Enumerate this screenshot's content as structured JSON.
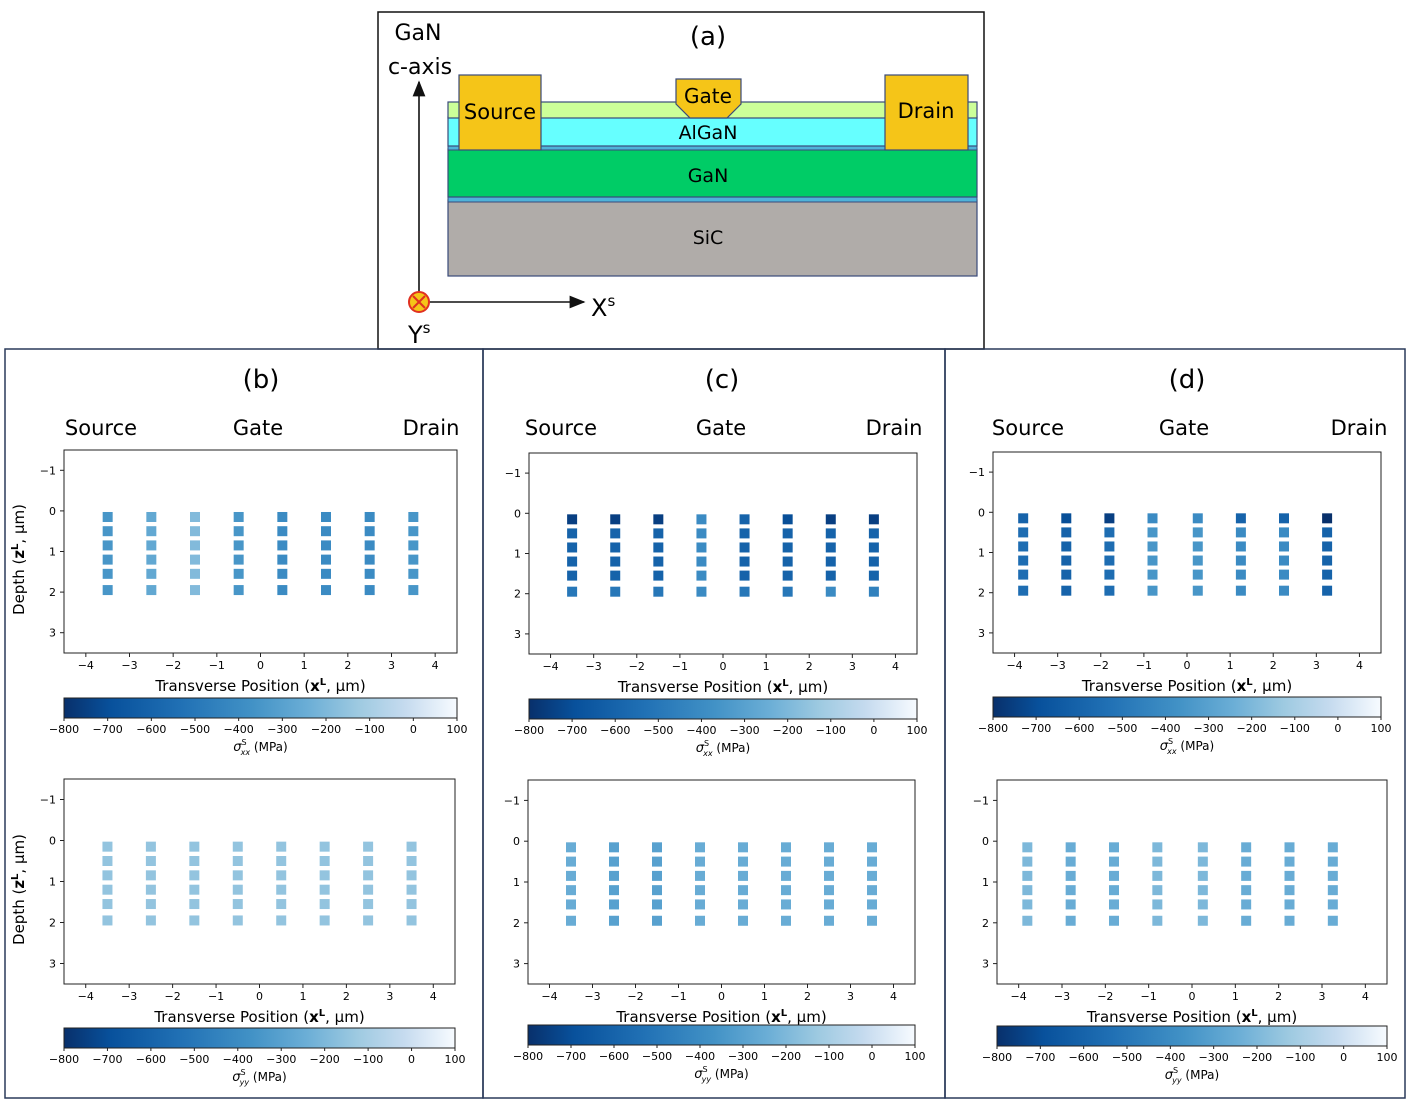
{
  "panel_a": {
    "label": "(a)",
    "gan_label": "GaN",
    "caxis_label": "c-axis",
    "x_axis_main": "X",
    "x_axis_sup": "s",
    "y_axis_main": "Y",
    "y_axis_sup": "s",
    "layers": {
      "source": "Source",
      "gate": "Gate",
      "drain": "Drain",
      "algan": "AlGaN",
      "gan": "GaN",
      "sic": "SiC"
    },
    "colors": {
      "contact": "#f5c518",
      "cap": "#ccff99",
      "algan": "#66ffff",
      "gan": "#00cc66",
      "sic": "#b0aca9",
      "thin": "#4fb3d9"
    }
  },
  "panels": [
    {
      "id": "b",
      "label": "(b)"
    },
    {
      "id": "c",
      "label": "(c)"
    },
    {
      "id": "d",
      "label": "(d)"
    }
  ],
  "headers": {
    "source": "Source",
    "gate": "Gate",
    "drain": "Drain"
  },
  "axes": {
    "xlabel_main": "Transverse Position",
    "xlabel_bold": "x",
    "xlabel_sup": "L",
    "xlabel_unit": ", μm)",
    "ylabel_main": "Depth (",
    "ylabel_bold": "z",
    "ylabel_sup": "L",
    "ylabel_unit": ", μm)",
    "xticks": [
      "−4",
      "−3",
      "−2",
      "−1",
      "0",
      "1",
      "2",
      "3",
      "4"
    ],
    "yticks": [
      "−1",
      "0",
      "1",
      "2",
      "3"
    ],
    "xlim": [
      -4.5,
      4.5
    ],
    "ylim": [
      3.5,
      -1.5
    ]
  },
  "colorbar": {
    "ticks": [
      "−800",
      "−700",
      "−600",
      "−500",
      "−400",
      "−300",
      "−200",
      "−100",
      "0",
      "100"
    ],
    "range": [
      -800,
      100
    ],
    "label_xx": "(MPa)",
    "label_yy": "(MPa)",
    "sigma": "σ",
    "sup": "S",
    "sub_xx": "xx",
    "sub_yy": "yy"
  },
  "chart_data": [
    {
      "type": "heatmap",
      "panel": "b",
      "title": "(b)",
      "stress": "sigma_xx",
      "x": [
        -3.5,
        -2.5,
        -1.5,
        -0.5,
        0.5,
        1.5,
        2.5,
        3.5
      ],
      "depth": [
        0.15,
        0.5,
        0.85,
        1.2,
        1.55,
        1.95
      ],
      "column_values": [
        -350,
        -270,
        -190,
        -350,
        -400,
        -400,
        -400,
        -350
      ]
    },
    {
      "type": "heatmap",
      "panel": "b",
      "title": "(b)",
      "stress": "sigma_yy",
      "x": [
        -3.5,
        -2.5,
        -1.5,
        -0.5,
        0.5,
        1.5,
        2.5,
        3.5
      ],
      "depth": [
        0.15,
        0.5,
        0.85,
        1.2,
        1.55,
        1.95
      ],
      "column_values": [
        -150,
        -150,
        -150,
        -150,
        -150,
        -150,
        -150,
        -150
      ]
    },
    {
      "type": "heatmap",
      "panel": "c",
      "title": "(c)",
      "stress": "sigma_xx",
      "x": [
        -3.5,
        -2.5,
        -1.5,
        -0.5,
        0.5,
        1.5,
        2.5,
        3.5
      ],
      "depth": [
        0.15,
        0.5,
        0.85,
        1.2,
        1.55,
        1.95
      ],
      "column_values": [
        -600,
        -600,
        -600,
        -400,
        -600,
        -600,
        -600,
        -600
      ],
      "top_row_values": [
        -750,
        -750,
        -750,
        -400,
        -600,
        -700,
        -750,
        -750
      ],
      "bottom_row_values": [
        -500,
        -500,
        -500,
        -400,
        -500,
        -500,
        -400,
        -450
      ]
    },
    {
      "type": "heatmap",
      "panel": "c",
      "title": "(c)",
      "stress": "sigma_yy",
      "x": [
        -3.5,
        -2.5,
        -1.5,
        -0.5,
        0.5,
        1.5,
        2.5,
        3.5
      ],
      "depth": [
        0.15,
        0.5,
        0.85,
        1.2,
        1.55,
        1.95
      ],
      "column_values": [
        -250,
        -300,
        -300,
        -250,
        -250,
        -250,
        -250,
        -250
      ]
    },
    {
      "type": "heatmap",
      "panel": "d",
      "title": "(d)",
      "stress": "sigma_xx",
      "x": [
        -3.8,
        -2.8,
        -1.8,
        -0.8,
        0.25,
        1.25,
        2.25,
        3.25
      ],
      "depth": [
        0.15,
        0.5,
        0.85,
        1.2,
        1.55,
        1.95
      ],
      "column_values": [
        -550,
        -600,
        -550,
        -350,
        -350,
        -400,
        -400,
        -600
      ],
      "top_row_values": [
        -600,
        -700,
        -750,
        -400,
        -400,
        -600,
        -600,
        -800
      ]
    },
    {
      "type": "heatmap",
      "panel": "d",
      "title": "(d)",
      "stress": "sigma_yy",
      "x": [
        -3.8,
        -2.8,
        -1.8,
        -0.8,
        0.25,
        1.25,
        2.25,
        3.25
      ],
      "depth": [
        0.15,
        0.5,
        0.85,
        1.2,
        1.55,
        1.95
      ],
      "column_values": [
        -200,
        -250,
        -250,
        -200,
        -200,
        -250,
        -250,
        -250
      ]
    }
  ]
}
